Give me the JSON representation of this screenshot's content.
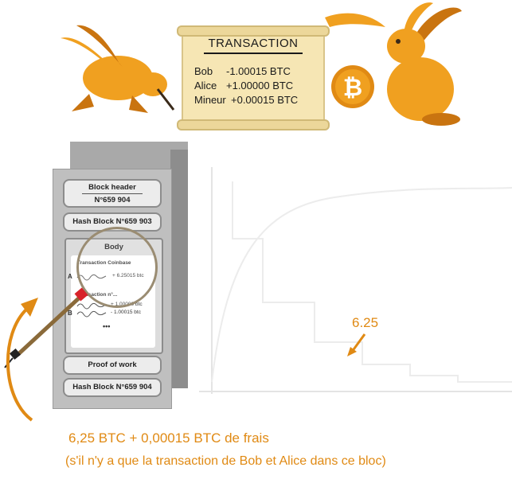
{
  "transaction": {
    "title": "TRANSACTION",
    "rows": [
      {
        "name": "Bob",
        "amount": "-1.00015 BTC"
      },
      {
        "name": "Alice",
        "amount": "+1.00000 BTC"
      },
      {
        "name": "Mineur",
        "amount": "+0.00015 BTC"
      }
    ]
  },
  "block": {
    "header_label": "Block header",
    "number": "N°659 904",
    "prev_hash": "Hash Block N°659 903",
    "body_label": "Body",
    "coinbase_label": "Transaction Coinbase",
    "coinbase_amount": "+ 6.25015 btc",
    "tx_label": "Transaction n°...",
    "tx_amount_1": "+ 1.00000 btc",
    "tx_amount_2": "- 1.00015 btc",
    "letter_a": "A",
    "letter_b": "B",
    "ellipsis": "•••",
    "proof_label": "Proof of work",
    "block_hash": "Hash Block N°659 904"
  },
  "chart": {
    "reward_label": "6.25"
  },
  "captions": {
    "line1": "6,25 BTC + 0,00015 BTC de frais",
    "line2": "(s'il n'y a que la transaction de Bob et Alice dans ce bloc)"
  },
  "colors": {
    "orange": "#e08a14",
    "rabbit": "#f0a020",
    "rabbit_dark": "#c97410",
    "parchment": "#f6e6b4",
    "server_gray": "#bfbfbf"
  },
  "icons": [
    "rabbit-left",
    "rabbit-right",
    "bitcoin-coin-icon",
    "magnifier-icon",
    "curved-arrow-icon"
  ]
}
